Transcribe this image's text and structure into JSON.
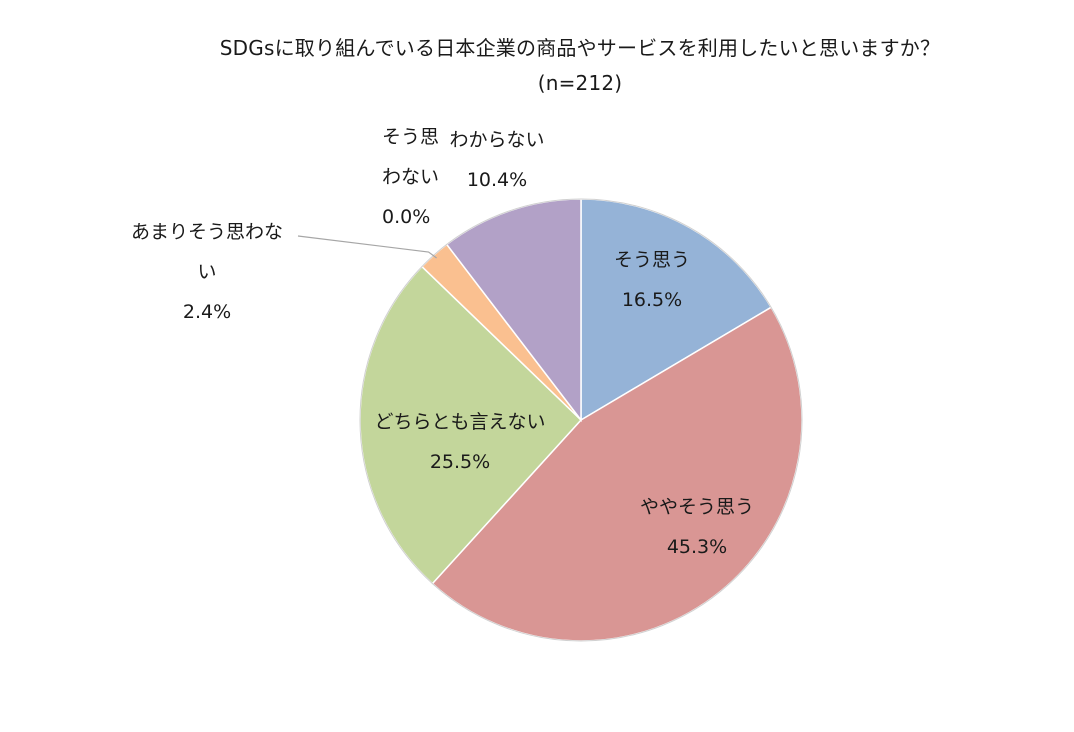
{
  "chart_data": {
    "type": "pie",
    "title": "SDGsに取り組んでいる日本企業の商品やサービスを利用したいと思いますか？",
    "subtitle": "(n=212)",
    "slices": [
      {
        "label": "そう思う",
        "value": 16.5,
        "value_label": "16.5%",
        "color": "#95b3d7"
      },
      {
        "label": "ややそう思う",
        "value": 45.3,
        "value_label": "45.3%",
        "color": "#d99694"
      },
      {
        "label": "どちらとも言えない",
        "value": 25.5,
        "value_label": "25.5%",
        "color": "#c3d69b"
      },
      {
        "label": "あまりそう思わない",
        "label_lines": [
          "あまりそう思わな",
          "い"
        ],
        "value": 2.4,
        "value_label": "2.4%",
        "color": "#fac090"
      },
      {
        "label": "そう思わない",
        "label_lines": [
          "そう思",
          "わない"
        ],
        "value": 0.0,
        "value_label": "0.0%",
        "color": "#8064a2"
      },
      {
        "label": "わからない",
        "value": 10.4,
        "value_label": "10.4%",
        "color": "#b2a1c7"
      }
    ],
    "start_angle": "12 o'clock",
    "direction": "clockwise",
    "legend": "none"
  }
}
